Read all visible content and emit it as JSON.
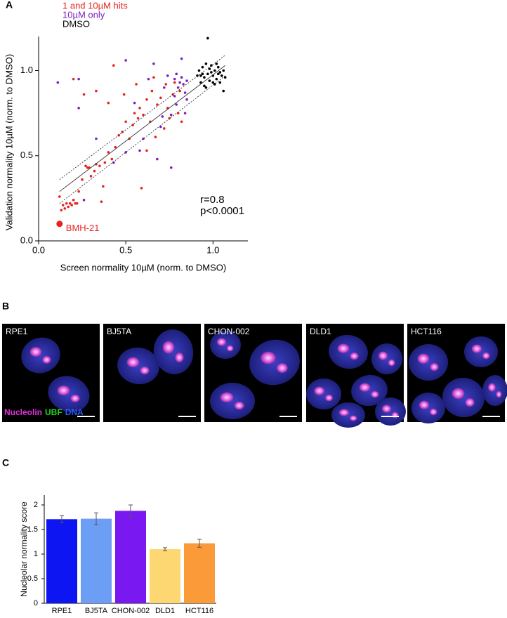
{
  "panels": {
    "labels": [
      "A",
      "B",
      "C"
    ]
  },
  "chart_data": [
    {
      "type": "scatter",
      "xlabel": "Screen normality 10µM (norm. to DMSO)",
      "ylabel": "Validation normality 10µM (norm. to DMSO)",
      "xlim": [
        0,
        1.2
      ],
      "ylim": [
        0,
        1.2
      ],
      "xticks": [
        {
          "value": 0,
          "label": "0.0"
        },
        0.5,
        {
          "value": 1,
          "label": "1.0"
        }
      ],
      "yticks": [
        {
          "value": 0,
          "label": "0.0"
        },
        0.5,
        {
          "value": 1,
          "label": "1.0"
        }
      ],
      "annotations": [
        "r=0.8",
        "p<0.0001"
      ],
      "highlight": {
        "label": "BMH-21",
        "x": 0.12,
        "y": 0.1,
        "color": "#e8231f"
      },
      "fit": {
        "x": [
          0.12,
          1.07
        ],
        "y": [
          0.29,
          1.03
        ]
      },
      "ci_upper": {
        "x": [
          0.12,
          1.07
        ],
        "y": [
          0.36,
          1.09
        ]
      },
      "ci_lower": {
        "x": [
          0.12,
          1.07
        ],
        "y": [
          0.22,
          0.97
        ]
      },
      "series": [
        {
          "name": "1 and 10µM hits",
          "color": "#e8231f",
          "x": [
            0.12,
            0.13,
            0.14,
            0.15,
            0.16,
            0.17,
            0.18,
            0.19,
            0.2,
            0.21,
            0.22,
            0.23,
            0.25,
            0.27,
            0.28,
            0.29,
            0.3,
            0.32,
            0.33,
            0.35,
            0.36,
            0.37,
            0.38,
            0.4,
            0.42,
            0.44,
            0.46,
            0.48,
            0.5,
            0.52,
            0.54,
            0.55,
            0.57,
            0.58,
            0.6,
            0.62,
            0.64,
            0.65,
            0.67,
            0.68,
            0.7,
            0.72,
            0.74,
            0.75,
            0.77,
            0.8,
            0.82,
            0.26,
            0.2,
            0.33,
            0.43,
            0.4,
            0.59,
            0.49,
            0.56,
            0.66,
            0.73,
            0.78,
            0.81,
            0.62
          ],
          "values": [
            0.26,
            0.18,
            0.21,
            0.19,
            0.22,
            0.2,
            0.22,
            0.21,
            0.24,
            0.22,
            0.22,
            0.29,
            0.36,
            0.44,
            0.43,
            0.43,
            0.38,
            0.41,
            0.45,
            0.44,
            0.23,
            0.32,
            0.46,
            0.52,
            0.48,
            0.55,
            0.62,
            0.64,
            0.7,
            0.6,
            0.68,
            0.75,
            0.72,
            0.78,
            0.74,
            0.83,
            0.7,
            0.88,
            0.61,
            0.8,
            0.84,
            0.66,
            0.78,
            0.72,
            0.86,
            0.75,
            0.7,
            0.86,
            0.95,
            0.88,
            1.03,
            0.81,
            0.31,
            0.86,
            0.92,
            0.96,
            0.92,
            0.93,
            0.88,
            0.53
          ]
        },
        {
          "name": "10µM only",
          "color": "#7a1fc2",
          "x": [
            0.11,
            0.23,
            0.23,
            0.26,
            0.33,
            0.43,
            0.5,
            0.5,
            0.55,
            0.6,
            0.63,
            0.66,
            0.7,
            0.72,
            0.74,
            0.76,
            0.78,
            0.78,
            0.79,
            0.8,
            0.81,
            0.82,
            0.83,
            0.84,
            0.85,
            0.85,
            0.68,
            0.76,
            0.84,
            0.58,
            0.82,
            0.79,
            0.71
          ],
          "values": [
            0.93,
            0.95,
            0.78,
            0.24,
            0.6,
            0.46,
            0.52,
            1.06,
            0.81,
            0.6,
            0.95,
            1.04,
            0.67,
            0.9,
            0.97,
            0.74,
            0.85,
            0.95,
            0.98,
            0.9,
            0.93,
            0.96,
            0.92,
            0.87,
            0.94,
            0.83,
            0.48,
            0.43,
            0.75,
            0.53,
            1.07,
            0.8,
            0.73
          ]
        },
        {
          "name": "DMSO",
          "color": "#000000",
          "x": [
            0.91,
            0.92,
            0.93,
            0.94,
            0.95,
            0.96,
            0.96,
            0.97,
            0.98,
            0.98,
            0.99,
            1.0,
            1.01,
            1.01,
            1.02,
            1.03,
            1.03,
            1.04,
            1.05,
            1.06,
            1.06,
            1.07,
            0.97,
            0.95,
            1.0,
            0.94,
            0.99,
            1.04,
            1.02,
            0.93
          ],
          "values": [
            0.97,
            1.0,
            0.93,
            1.02,
            0.96,
            1.04,
            0.9,
            0.98,
            1.01,
            0.94,
            1.03,
            0.97,
            0.92,
            1.0,
            0.95,
            0.98,
            1.02,
            0.93,
            0.97,
            1.0,
            0.88,
            0.96,
            1.19,
            0.91,
            0.93,
            0.98,
            0.99,
            0.99,
            1.04,
            0.97
          ]
        }
      ]
    },
    {
      "type": "bar",
      "ylabel": "Nucleolar normality score",
      "categories": [
        "RPE1",
        "BJ5TA",
        "CHON-002",
        "DLD1",
        "HCT116"
      ],
      "values": [
        1.71,
        1.72,
        1.88,
        1.1,
        1.22
      ],
      "errors": [
        0.07,
        0.12,
        0.12,
        0.03,
        0.08
      ],
      "colors": [
        "#0d15f2",
        "#6c9ef6",
        "#7a18f2",
        "#fdd872",
        "#fa9a38"
      ],
      "ylim": [
        0,
        2.2
      ],
      "yticks": [
        0,
        0.5,
        1,
        1.5,
        2
      ]
    }
  ],
  "images": {
    "items": [
      {
        "label": "RPE1"
      },
      {
        "label": "BJ5TA"
      },
      {
        "label": "CHON-002"
      },
      {
        "label": "DLD1"
      },
      {
        "label": "HCT116"
      }
    ],
    "stain_legend": [
      "Nucleolin",
      "UBF",
      "DNA"
    ]
  }
}
